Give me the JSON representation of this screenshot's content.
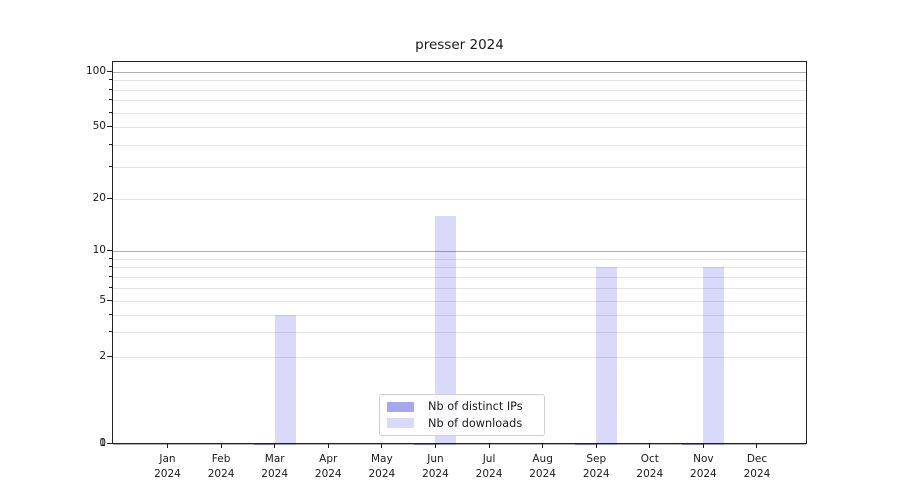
{
  "title": "presser 2024",
  "chart_data": {
    "type": "bar",
    "title": "presser 2024",
    "categories": [
      "Jan 2024",
      "Feb 2024",
      "Mar 2024",
      "Apr 2024",
      "May 2024",
      "Jun 2024",
      "Jul 2024",
      "Aug 2024",
      "Sep 2024",
      "Oct 2024",
      "Nov 2024",
      "Dec 2024"
    ],
    "x_months": [
      "Jan",
      "Feb",
      "Mar",
      "Apr",
      "May",
      "Jun",
      "Jul",
      "Aug",
      "Sep",
      "Oct",
      "Nov",
      "Dec"
    ],
    "x_year": "2024",
    "series": [
      {
        "name": "Nb of distinct IPs",
        "values": [
          0,
          0,
          1,
          0,
          0,
          1,
          0,
          0,
          1,
          0,
          1,
          0
        ]
      },
      {
        "name": "Nb of downloads",
        "values": [
          0,
          0,
          4,
          0,
          0,
          16,
          0,
          0,
          8,
          0,
          8,
          0
        ]
      }
    ],
    "ylabel": "",
    "xlabel": "",
    "y_axis": {
      "scale": "log-like with linear zero segment",
      "major_labeled_ticks": [
        0,
        1,
        2,
        5,
        10,
        20,
        50,
        100
      ],
      "emphasized_grid_ticks": [
        1,
        10,
        100
      ],
      "minor_ticks": [
        3,
        4,
        6,
        7,
        8,
        9,
        30,
        40,
        60,
        70,
        80,
        90
      ],
      "ylim": [
        0,
        110
      ]
    },
    "grid": true,
    "legend_position": "lower center"
  },
  "legend": {
    "items": [
      {
        "label": "Nb of distinct IPs"
      },
      {
        "label": "Nb of downloads"
      }
    ]
  },
  "colors": {
    "bar_distinct_ips": "rgba(10,10,214,0.36)",
    "bar_downloads": "rgba(10,10,214,0.155)",
    "grid_major": "#aeaeae",
    "grid_minor": "#e4e4e4",
    "spine": "#222222",
    "text": "#1a1a1a"
  }
}
